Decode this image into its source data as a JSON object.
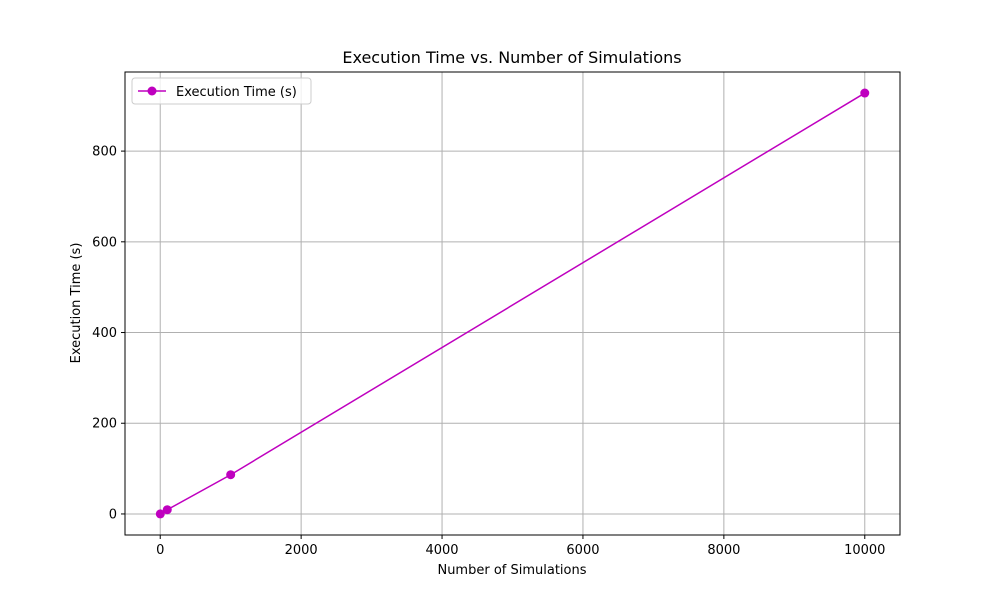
{
  "chart_data": {
    "type": "line",
    "title": "Execution Time vs. Number of Simulations",
    "xlabel": "Number of Simulations",
    "ylabel": "Execution Time (s)",
    "xlim": [
      -500,
      10500
    ],
    "ylim": [
      -46.4,
      974.4
    ],
    "x_ticks": [
      0,
      2000,
      4000,
      6000,
      8000,
      10000
    ],
    "y_ticks": [
      0,
      200,
      400,
      600,
      800
    ],
    "x_tick_labels": [
      "0",
      "2000",
      "4000",
      "6000",
      "8000",
      "10000"
    ],
    "y_tick_labels": [
      "0",
      "200",
      "400",
      "600",
      "800"
    ],
    "grid": true,
    "legend_position": "upper-left",
    "series": [
      {
        "name": "Execution Time (s)",
        "color": "#bf00bf",
        "marker": "circle",
        "x": [
          1,
          100,
          1000,
          10000
        ],
        "y": [
          0.09,
          9.3,
          86.5,
          928
        ]
      }
    ]
  }
}
